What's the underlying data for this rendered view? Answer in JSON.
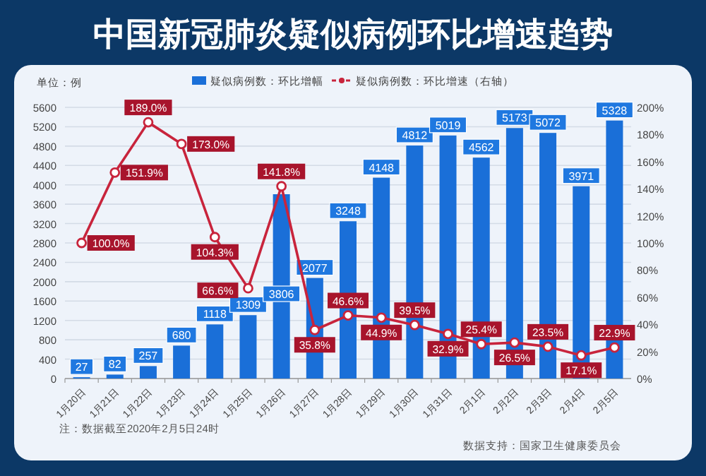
{
  "chart_data": {
    "type": "bar",
    "title": "中国新冠肺炎疑似病例环比增速趋势",
    "ylabel": "单位：例",
    "categories": [
      "1月20日",
      "1月21日",
      "1月22日",
      "1月23日",
      "1月24日",
      "1月25日",
      "1月26日",
      "1月27日",
      "1月28日",
      "1月29日",
      "1月30日",
      "1月31日",
      "2月1日",
      "2月2日",
      "2月3日",
      "2月4日",
      "2月5日"
    ],
    "series": [
      {
        "name": "疑似病例数：环比增幅",
        "color": "#1a6fd8",
        "values": [
          27,
          82,
          257,
          680,
          1118,
          1309,
          3806,
          2077,
          3248,
          4148,
          4812,
          5019,
          4562,
          5173,
          5072,
          3971,
          5328
        ]
      },
      {
        "name": "疑似病例数：环比增速（右轴）",
        "type": "line",
        "axis": "y2",
        "color": "#c8243c",
        "marker": "circle",
        "values": [
          100.0,
          151.9,
          189.0,
          173.0,
          104.3,
          66.6,
          141.8,
          35.8,
          46.6,
          44.9,
          39.5,
          32.9,
          25.4,
          26.5,
          23.5,
          17.1,
          22.9
        ],
        "value_labels": [
          "100.0%",
          "151.9%",
          "189.0%",
          "173.0%",
          "104.3%",
          "66.6%",
          "141.8%",
          "35.8%",
          "46.6%",
          "44.9%",
          "39.5%",
          "32.9%",
          "25.4%",
          "26.5%",
          "23.5%",
          "17.1%",
          "22.9%"
        ]
      }
    ],
    "data_labels": true,
    "ylim": [
      0,
      5600
    ],
    "yticks": [
      0,
      400,
      800,
      1200,
      1600,
      2000,
      2400,
      2800,
      3200,
      3600,
      4000,
      4400,
      4800,
      5200,
      5600
    ],
    "y2lim": [
      0,
      200
    ],
    "y2ticks": [
      {
        "value": 0,
        "label": "0%"
      },
      {
        "value": 20,
        "label": "20%"
      },
      {
        "value": 40,
        "label": "40%"
      },
      {
        "value": 60,
        "label": "60%"
      },
      {
        "value": 80,
        "label": "80%"
      },
      {
        "value": 100,
        "label": "100%"
      },
      {
        "value": 120,
        "label": "120%"
      },
      {
        "value": 140,
        "label": "140%"
      },
      {
        "value": 160,
        "label": "160%"
      },
      {
        "value": 180,
        "label": "180%"
      },
      {
        "value": 200,
        "label": "200%"
      }
    ],
    "grid": "y",
    "legend": "top",
    "annotations": [
      "注：数据截至2020年2月5日24时",
      "数据支持：国家卫生健康委员会"
    ]
  }
}
